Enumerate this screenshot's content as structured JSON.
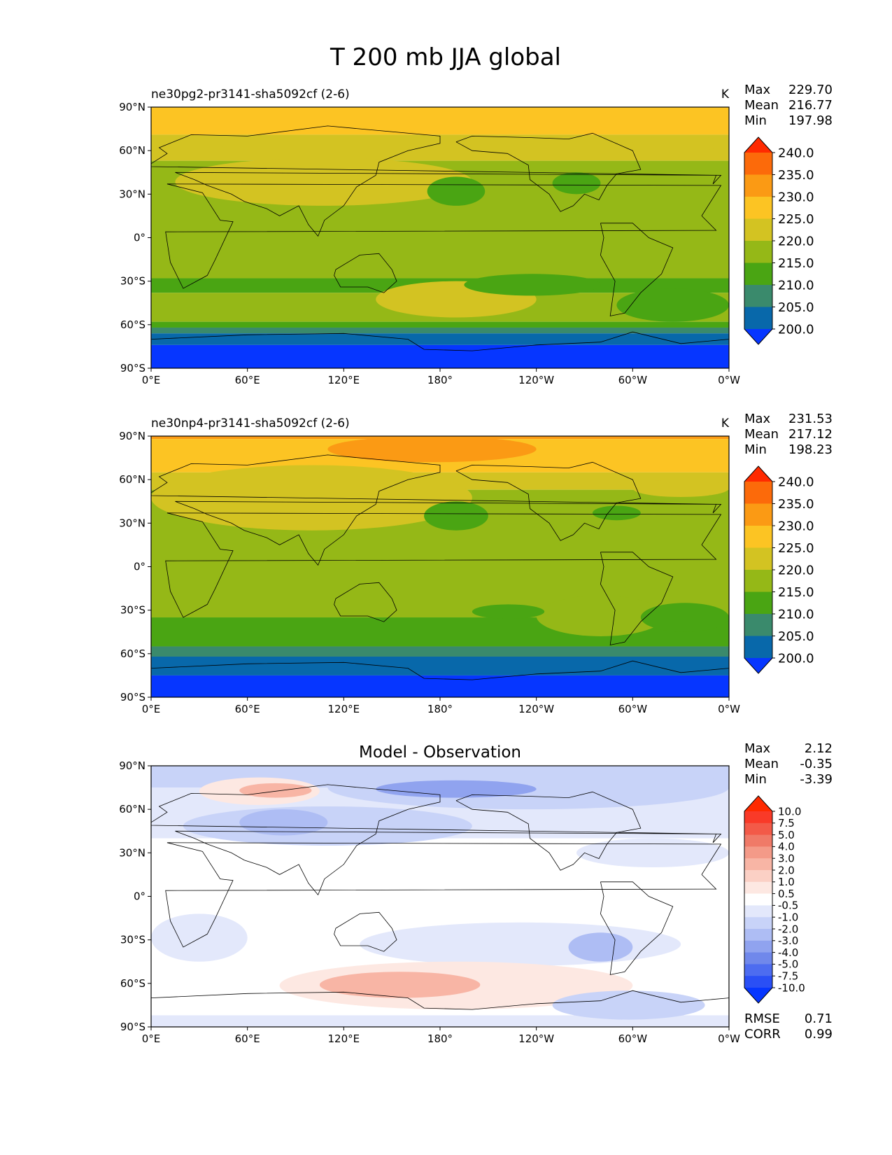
{
  "figure": {
    "title": "T 200 mb JJA global"
  },
  "chart_data": [
    {
      "type": "heatmap",
      "kind": "map",
      "left_title": "ne30pg2-pr3141-sha5092cf (2-6)",
      "center_title": "",
      "units": "K",
      "stats": [
        {
          "label": "Max",
          "value": "229.70"
        },
        {
          "label": "Mean",
          "value": "216.77"
        },
        {
          "label": "Min",
          "value": "197.98"
        }
      ],
      "x_ticks": [
        "0°E",
        "60°E",
        "120°E",
        "180°",
        "120°W",
        "60°W",
        "0°W"
      ],
      "y_ticks": [
        "90°N",
        "60°N",
        "30°N",
        "0°",
        "30°S",
        "60°S",
        "90°S"
      ],
      "xlim": [
        0,
        360
      ],
      "ylim": [
        -90,
        90
      ],
      "colorbar": {
        "levels": [
          "240.0",
          "235.0",
          "230.0",
          "225.0",
          "220.0",
          "215.0",
          "210.0",
          "205.0",
          "200.0"
        ],
        "colors": [
          "#ff2a00",
          "#fc6a0a",
          "#fb9a14",
          "#fcc423",
          "#d3c322",
          "#95b817",
          "#4aa513",
          "#3a8a6c",
          "#0868aa",
          "#0636ff"
        ],
        "extend": "both"
      },
      "field": [
        {
          "lat": [
            90,
            71
          ],
          "color": "#fcc423"
        },
        {
          "lat": [
            71,
            53
          ],
          "color": "#d3c322"
        },
        {
          "lat": [
            53,
            -28
          ],
          "color": "#95b817"
        },
        {
          "lat": [
            -28,
            -38
          ],
          "color": "#4aa513"
        },
        {
          "lat": [
            -38,
            -58
          ],
          "color": "#95b817"
        },
        {
          "lat": [
            -58,
            -62
          ],
          "color": "#4aa513"
        },
        {
          "lat": [
            -62,
            -66
          ],
          "color": "#3a8a6c"
        },
        {
          "lat": [
            -66,
            -74
          ],
          "color": "#0868aa"
        },
        {
          "lat": [
            -74,
            -90
          ],
          "color": "#0636ff"
        }
      ],
      "contours": [
        {
          "lon": [
            0,
            55
          ],
          "lat": [
            70,
            62
          ],
          "color": "#d3c322"
        },
        {
          "lon": [
            300,
            360
          ],
          "lat": [
            70,
            60
          ],
          "color": "#d3c322"
        },
        {
          "lon": [
            15,
            200
          ],
          "lat": [
            55,
            22
          ],
          "color": "#d3c322"
        },
        {
          "lon": [
            140,
            240
          ],
          "lat": [
            -30,
            -55
          ],
          "color": "#d3c322"
        },
        {
          "lon": [
            290,
            360
          ],
          "lat": [
            -35,
            -58
          ],
          "color": "#4aa513"
        },
        {
          "lon": [
            172,
            208
          ],
          "lat": [
            42,
            22
          ],
          "color": "#4aa513"
        },
        {
          "lon": [
            250,
            280
          ],
          "lat": [
            45,
            30
          ],
          "color": "#4aa513"
        },
        {
          "lon": [
            195,
            280
          ],
          "lat": [
            -25,
            -40
          ],
          "color": "#4aa513"
        }
      ]
    },
    {
      "type": "heatmap",
      "kind": "map",
      "left_title": "ne30np4-pr3141-sha5092cf (2-6)",
      "center_title": "",
      "units": "K",
      "stats": [
        {
          "label": "Max",
          "value": "231.53"
        },
        {
          "label": "Mean",
          "value": "217.12"
        },
        {
          "label": "Min",
          "value": "198.23"
        }
      ],
      "x_ticks": [
        "0°E",
        "60°E",
        "120°E",
        "180°",
        "120°W",
        "60°W",
        "0°W"
      ],
      "y_ticks": [
        "90°N",
        "60°N",
        "30°N",
        "0°",
        "30°S",
        "60°S",
        "90°S"
      ],
      "xlim": [
        0,
        360
      ],
      "ylim": [
        -90,
        90
      ],
      "colorbar": {
        "levels": [
          "240.0",
          "235.0",
          "230.0",
          "225.0",
          "220.0",
          "215.0",
          "210.0",
          "205.0",
          "200.0"
        ],
        "colors": [
          "#ff2a00",
          "#fc6a0a",
          "#fb9a14",
          "#fcc423",
          "#d3c322",
          "#95b817",
          "#4aa513",
          "#3a8a6c",
          "#0868aa",
          "#0636ff"
        ],
        "extend": "both"
      },
      "field": [
        {
          "lat": [
            90,
            88
          ],
          "color": "#fb9a14"
        },
        {
          "lat": [
            88,
            65
          ],
          "color": "#fcc423"
        },
        {
          "lat": [
            65,
            53
          ],
          "color": "#d3c322"
        },
        {
          "lat": [
            53,
            -35
          ],
          "color": "#95b817"
        },
        {
          "lat": [
            -35,
            -55
          ],
          "color": "#4aa513"
        },
        {
          "lat": [
            -55,
            -62
          ],
          "color": "#3a8a6c"
        },
        {
          "lat": [
            -62,
            -75
          ],
          "color": "#0868aa"
        },
        {
          "lat": [
            -75,
            -90
          ],
          "color": "#0636ff"
        }
      ],
      "contours": [
        {
          "lon": [
            110,
            240
          ],
          "lat": [
            90,
            72
          ],
          "color": "#fb9a14"
        },
        {
          "lon": [
            0,
            200
          ],
          "lat": [
            70,
            25
          ],
          "color": "#d3c322"
        },
        {
          "lon": [
            300,
            360
          ],
          "lat": [
            60,
            48
          ],
          "color": "#d3c322"
        },
        {
          "lon": [
            240,
            320
          ],
          "lat": [
            -20,
            -48
          ],
          "color": "#95b817"
        },
        {
          "lon": [
            170,
            210
          ],
          "lat": [
            45,
            25
          ],
          "color": "#4aa513"
        },
        {
          "lon": [
            275,
            305
          ],
          "lat": [
            42,
            32
          ],
          "color": "#4aa513"
        },
        {
          "lon": [
            200,
            245
          ],
          "lat": [
            -26,
            -36
          ],
          "color": "#4aa513"
        },
        {
          "lon": [
            305,
            360
          ],
          "lat": [
            -25,
            -45
          ],
          "color": "#4aa513"
        }
      ]
    },
    {
      "type": "heatmap",
      "kind": "map",
      "left_title": "",
      "center_title": "Model - Observation",
      "units": "",
      "stats": [
        {
          "label": "Max",
          "value": "2.12"
        },
        {
          "label": "Mean",
          "value": "-0.35"
        },
        {
          "label": "Min",
          "value": "-3.39"
        }
      ],
      "extra_stats": [
        {
          "label": "RMSE",
          "value": "0.71"
        },
        {
          "label": "CORR",
          "value": "0.99"
        }
      ],
      "x_ticks": [
        "0°E",
        "60°E",
        "120°E",
        "180°",
        "120°W",
        "60°W",
        "0°W"
      ],
      "y_ticks": [
        "90°N",
        "60°N",
        "30°N",
        "0°",
        "30°S",
        "60°S",
        "90°S"
      ],
      "xlim": [
        0,
        360
      ],
      "ylim": [
        -90,
        90
      ],
      "colorbar": {
        "levels": [
          "10.0",
          "7.5",
          "5.0",
          "4.0",
          "3.0",
          "2.0",
          "1.0",
          "0.5",
          "-0.5",
          "-1.0",
          "-2.0",
          "-3.0",
          "-4.0",
          "-5.0",
          "-7.5",
          "-10.0"
        ],
        "colors": [
          "#ff2a00",
          "#f93a28",
          "#f35a48",
          "#f07a68",
          "#f49a88",
          "#f8b5a5",
          "#fbd0c5",
          "#fde8e2",
          "#ffffff",
          "#e3e8fb",
          "#c8d3f8",
          "#aebdf4",
          "#90a3ef",
          "#7088eb",
          "#4d6cf0",
          "#2a4ff5",
          "#0636ff"
        ],
        "extend": "both"
      },
      "field": [
        {
          "lat": [
            90,
            75
          ],
          "color": "#c8d3f8"
        },
        {
          "lat": [
            75,
            40
          ],
          "color": "#e3e8fb"
        },
        {
          "lat": [
            40,
            -60
          ],
          "color": "#ffffff"
        },
        {
          "lat": [
            -60,
            -82
          ],
          "color": "#ffffff"
        },
        {
          "lat": [
            -82,
            -90
          ],
          "color": "#e3e8fb"
        }
      ],
      "contours": [
        {
          "lon": [
            110,
            360
          ],
          "lat": [
            90,
            60
          ],
          "color": "#c8d3f8"
        },
        {
          "lon": [
            140,
            240
          ],
          "lat": [
            80,
            68
          ],
          "color": "#90a3ef"
        },
        {
          "lon": [
            20,
            200
          ],
          "lat": [
            62,
            35
          ],
          "color": "#c8d3f8"
        },
        {
          "lon": [
            55,
            110
          ],
          "lat": [
            60,
            42
          ],
          "color": "#aebdf4"
        },
        {
          "lon": [
            265,
            360
          ],
          "lat": [
            40,
            20
          ],
          "color": "#e3e8fb"
        },
        {
          "lon": [
            30,
            105
          ],
          "lat": [
            82,
            63
          ],
          "color": "#fde8e2"
        },
        {
          "lon": [
            55,
            100
          ],
          "lat": [
            78,
            68
          ],
          "color": "#f8b5a5"
        },
        {
          "lon": [
            0,
            60
          ],
          "lat": [
            -12,
            -45
          ],
          "color": "#e3e8fb"
        },
        {
          "lon": [
            130,
            330
          ],
          "lat": [
            -18,
            -48
          ],
          "color": "#e3e8fb"
        },
        {
          "lon": [
            260,
            300
          ],
          "lat": [
            -25,
            -45
          ],
          "color": "#aebdf4"
        },
        {
          "lon": [
            80,
            300
          ],
          "lat": [
            -45,
            -78
          ],
          "color": "#fde8e2"
        },
        {
          "lon": [
            105,
            205
          ],
          "lat": [
            -52,
            -70
          ],
          "color": "#f8b5a5"
        },
        {
          "lon": [
            250,
            345
          ],
          "lat": [
            -65,
            -85
          ],
          "color": "#c8d3f8"
        }
      ]
    }
  ]
}
